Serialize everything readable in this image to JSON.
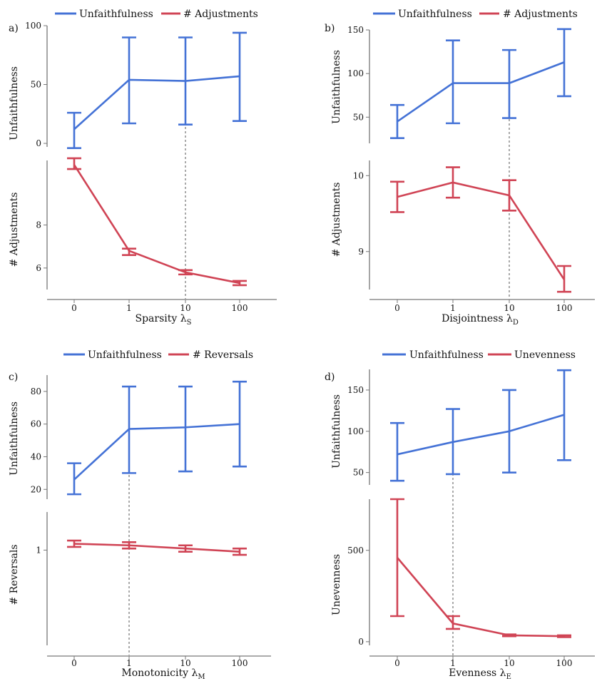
{
  "colors": {
    "blue": "#4472d6",
    "red": "#d04455",
    "ref": "#aaaaaa"
  },
  "x_categories": [
    "0",
    "1",
    "10",
    "100"
  ],
  "chart_data": [
    {
      "type": "line",
      "panel": "a)",
      "xlabel": "Sparsity λ",
      "xlabel_sub": "S",
      "legend": [
        "Unfaithfulness",
        "# Adjustments"
      ],
      "reference_category": "10",
      "top": {
        "ylabel": "Unfaithfulness",
        "ylim": [
          -3,
          100
        ],
        "ticks": [
          "0",
          "50",
          "100"
        ],
        "tick_values": [
          0,
          50,
          100
        ],
        "values": [
          12,
          54,
          53,
          57
        ],
        "err_low": [
          -4,
          17,
          16,
          19
        ],
        "err_high": [
          26,
          90,
          90,
          94
        ]
      },
      "bottom": {
        "ylabel": "# Adjustments",
        "ylim": [
          5,
          11
        ],
        "ticks": [
          "6",
          "8"
        ],
        "tick_values": [
          6,
          8
        ],
        "values": [
          10.8,
          6.8,
          5.8,
          5.3
        ],
        "err_low": [
          10.6,
          6.6,
          5.7,
          5.2
        ],
        "err_high": [
          11.1,
          6.9,
          5.9,
          5.4
        ]
      }
    },
    {
      "type": "line",
      "panel": "b)",
      "xlabel": "Disjointness λ",
      "xlabel_sub": "D",
      "legend": [
        "Unfaithfulness",
        "# Adjustments"
      ],
      "reference_category": "10",
      "top": {
        "ylabel": "Unfaithfulness",
        "ylim": [
          20,
          150
        ],
        "ticks": [
          "50",
          "100",
          "150"
        ],
        "tick_values": [
          50,
          100,
          150
        ],
        "values": [
          45,
          89,
          89,
          113
        ],
        "err_low": [
          26,
          43,
          49,
          74
        ],
        "err_high": [
          64,
          138,
          127,
          151
        ]
      },
      "bottom": {
        "ylabel": "# Adjustments",
        "ylim": [
          8.5,
          10.2
        ],
        "ticks": [
          "9",
          "10"
        ],
        "tick_values": [
          9,
          10
        ],
        "values": [
          9.72,
          9.91,
          9.74,
          8.63
        ],
        "err_low": [
          9.52,
          9.71,
          9.54,
          8.47
        ],
        "err_high": [
          9.92,
          10.11,
          9.94,
          8.81
        ]
      }
    },
    {
      "type": "line",
      "panel": "c)",
      "xlabel": "Monotonicity λ",
      "xlabel_sub": "M",
      "legend": [
        "Unfaithfulness",
        "# Reversals"
      ],
      "reference_category": "1",
      "top": {
        "ylabel": "Unfaithfulness",
        "ylim": [
          14,
          90
        ],
        "ticks": [
          "20",
          "40",
          "60",
          "80"
        ],
        "tick_values": [
          20,
          40,
          60,
          80
        ],
        "values": [
          26,
          57,
          58,
          60
        ],
        "err_low": [
          17,
          30,
          31,
          34
        ],
        "err_high": [
          36,
          83,
          83,
          86
        ]
      },
      "bottom": {
        "ylabel": "# Reversals",
        "ylim": [
          0.7,
          1.12
        ],
        "ticks": [
          "1"
        ],
        "tick_values": [
          1
        ],
        "values": [
          1.02,
          1.015,
          1.005,
          0.995
        ],
        "err_low": [
          1.01,
          1.005,
          0.995,
          0.985
        ],
        "err_high": [
          1.03,
          1.025,
          1.015,
          1.005
        ]
      }
    },
    {
      "type": "line",
      "panel": "d)",
      "xlabel": "Evenness λ",
      "xlabel_sub": "E",
      "legend": [
        "Unfaithfulness",
        "Unevenness"
      ],
      "reference_category": "1",
      "top": {
        "ylabel": "Unfaithfulness",
        "ylim": [
          35,
          175
        ],
        "ticks": [
          "50",
          "100",
          "150"
        ],
        "tick_values": [
          50,
          100,
          150
        ],
        "values": [
          72,
          87,
          100,
          120
        ],
        "err_low": [
          40,
          48,
          50,
          65
        ],
        "err_high": [
          110,
          127,
          150,
          174
        ]
      },
      "bottom": {
        "ylabel": "Unevenness",
        "ylim": [
          -20,
          780
        ],
        "ticks": [
          "0",
          "500"
        ],
        "tick_values": [
          0,
          500
        ],
        "values": [
          460,
          100,
          35,
          30
        ],
        "err_low": [
          140,
          70,
          30,
          25
        ],
        "err_high": [
          780,
          140,
          40,
          35
        ]
      }
    }
  ]
}
